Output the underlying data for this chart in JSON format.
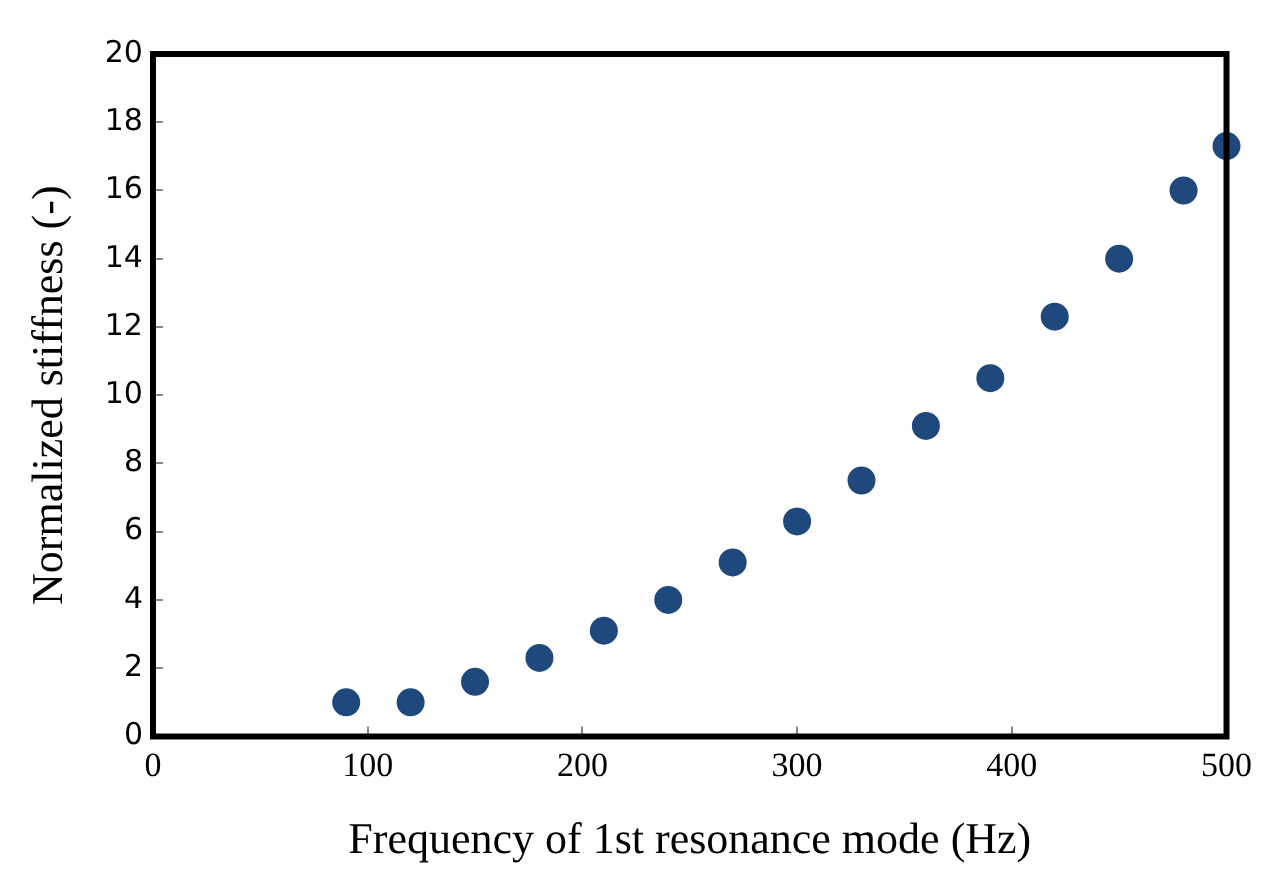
{
  "chart_data": {
    "type": "scatter",
    "xlabel": "Frequency of 1st resonance mode (Hz)",
    "ylabel": "Normalized stiffness (-)",
    "x": [
      90,
      120,
      150,
      180,
      210,
      240,
      270,
      300,
      330,
      360,
      390,
      420,
      450,
      480,
      500
    ],
    "series": [
      {
        "color": "#1f497d",
        "values": [
          1.0,
          1.0,
          1.6,
          2.3,
          3.1,
          4.0,
          5.1,
          6.3,
          7.5,
          9.1,
          10.5,
          12.3,
          14.0,
          16.0,
          17.3
        ]
      }
    ],
    "xlim": [
      0,
      500
    ],
    "xticks": [
      0,
      100,
      200,
      300,
      400,
      500
    ],
    "ylim": [
      0,
      20
    ],
    "yticks": [
      0,
      2,
      4,
      6,
      8,
      10,
      12,
      14,
      16,
      18,
      20
    ],
    "grid": false,
    "legend": false,
    "marker": "circle"
  }
}
